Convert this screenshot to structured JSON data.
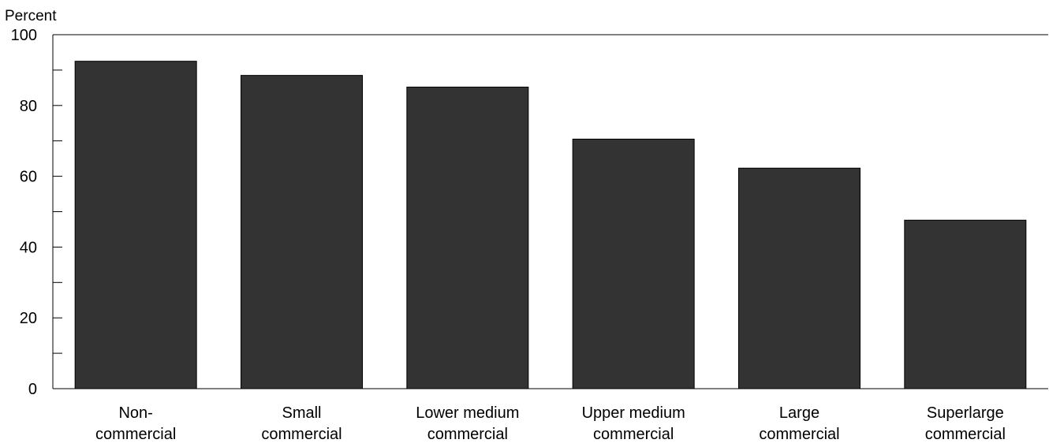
{
  "chart_data": {
    "type": "bar",
    "title": "",
    "ylabel": "Percent",
    "xlabel": "",
    "ylim": [
      0,
      100
    ],
    "yticks_major": [
      0,
      20,
      40,
      60,
      80,
      100
    ],
    "yticks_minor": [
      10,
      30,
      50,
      70,
      90
    ],
    "categories": [
      [
        "Non-",
        "commercial"
      ],
      [
        "Small",
        "commercial"
      ],
      [
        "Lower medium",
        "commercial"
      ],
      [
        "Upper medium",
        "commercial"
      ],
      [
        "Large",
        "commercial"
      ],
      [
        "Superlarge",
        "commercial"
      ]
    ],
    "values": [
      92.5,
      88.5,
      85.2,
      70.5,
      62.3,
      47.6
    ],
    "bar_color": "#333333",
    "grid": false,
    "legend": "none"
  }
}
